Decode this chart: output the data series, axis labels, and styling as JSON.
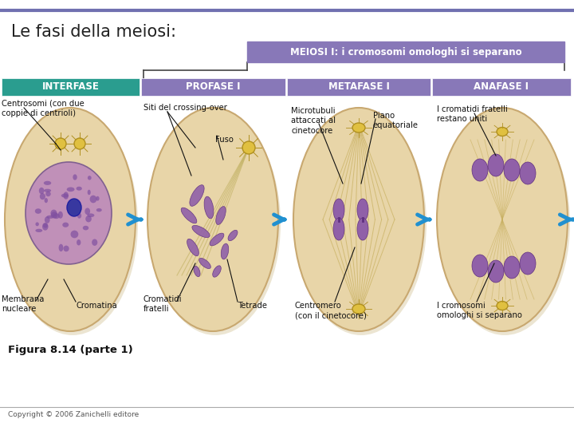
{
  "title": "Le fasi della meiosi:",
  "meiosi_label": "MEIOSI I: i cromosomi omologhi si separano",
  "phases": [
    "INTERFASE",
    "PROFASE I",
    "METAFASE I",
    "ANAFASE I"
  ],
  "phase_colors": [
    "#2a9d8f",
    "#8878b8",
    "#8878b8",
    "#8878b8"
  ],
  "bg_color": "#ffffff",
  "cell_fill": "#e8d5a8",
  "cell_edge": "#c8a870",
  "cell_shadow": "#d4c090",
  "arrow_color": "#2090d0",
  "header_bar_color": "#8878b8",
  "top_line_color": "#7070b0",
  "bracket_color": "#444444",
  "figura_label": "Figura 8.14 (parte 1)",
  "copyright_label": "Copyright © 2006 Zanichelli editore",
  "nucleus_fill": "#c8a0c0",
  "nucleus_edge": "#906090",
  "chrom_fill": "#9060a0",
  "chrom_edge": "#604080",
  "centrosome_fill": "#e0c040",
  "centrosome_edge": "#b09020",
  "spindle_color": "#c8b870",
  "ann_fontsize": 7.2,
  "ann_color": "#111111"
}
